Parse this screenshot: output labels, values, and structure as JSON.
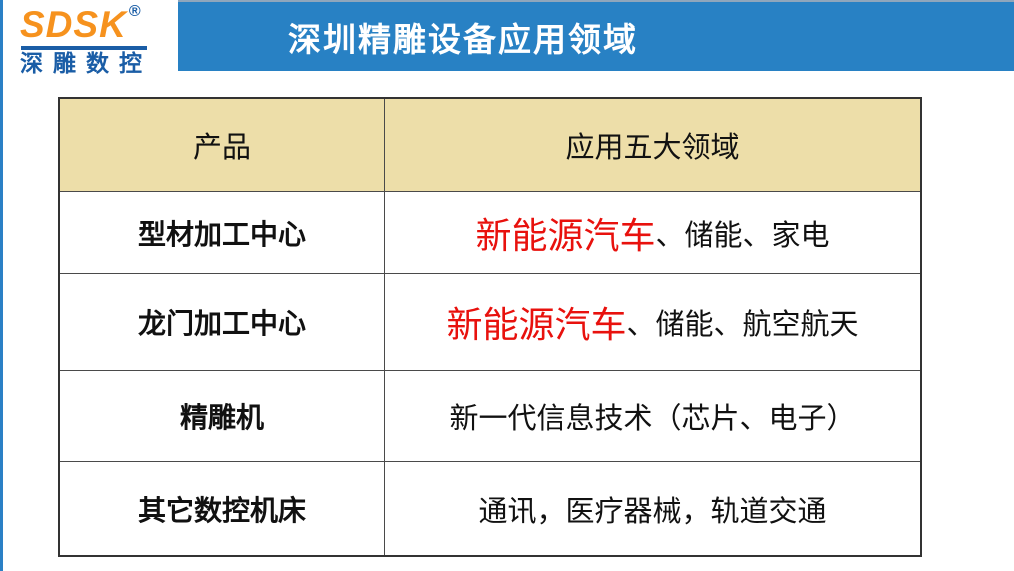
{
  "logo": {
    "brand": "SDSK",
    "registered": "®",
    "subtext": "深雕数控"
  },
  "banner": {
    "title": "深圳精雕设备应用领域"
  },
  "table": {
    "header": {
      "col1": "产品",
      "col2": "应用五大领域"
    },
    "rows": [
      {
        "product": "型材加工中心",
        "highlight": "新能源汽车",
        "rest": "、储能、家电"
      },
      {
        "product": "龙门加工中心",
        "highlight": "新能源汽车",
        "rest": "、储能、航空航天"
      },
      {
        "product": "精雕机",
        "highlight": "",
        "rest": "新一代信息技术（芯片、电子）"
      },
      {
        "product": "其它数控机床",
        "highlight": "",
        "rest": "通讯，医疗器械，轨道交通"
      }
    ]
  },
  "colors": {
    "page_bg": "#FFFFFF",
    "accent_blue": "#2A80C5",
    "banner_bg": "#2881C4",
    "banner_edge": "#8FA6BC",
    "banner_fg": "#FFFFFF",
    "logo_orange": "#F6921E",
    "logo_blue": "#1A5DA6",
    "header_bg": "#EDDEA9",
    "highlight_red": "#E8110D",
    "border_dark": "#333333",
    "border_mid": "#4A4A4A"
  }
}
